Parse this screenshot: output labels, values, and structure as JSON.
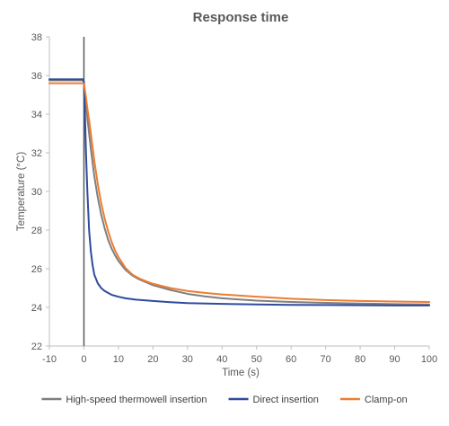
{
  "chart_data": {
    "type": "line",
    "title": "Response time",
    "xlabel": "Time (s)",
    "ylabel": "Temperature (°C)",
    "xlim": [
      -10,
      100
    ],
    "ylim": [
      22,
      38
    ],
    "xticks": [
      -10,
      0,
      10,
      20,
      30,
      40,
      50,
      60,
      70,
      80,
      90,
      100
    ],
    "yticks": [
      22,
      24,
      26,
      28,
      30,
      32,
      34,
      36,
      38
    ],
    "grid": false,
    "legend_position": "bottom",
    "annotations": [
      {
        "type": "vertical-line",
        "x": 0,
        "color": "#595959"
      }
    ],
    "series": [
      {
        "name": "High-speed thermowell insertion",
        "color": "#7f7f7f",
        "points": [
          [
            -10,
            35.75
          ],
          [
            -5,
            35.75
          ],
          [
            -1,
            35.75
          ],
          [
            -0.2,
            35.75
          ],
          [
            0,
            35.7
          ],
          [
            0.5,
            34.7
          ],
          [
            1,
            33.8
          ],
          [
            1.5,
            33.0
          ],
          [
            2,
            32.2
          ],
          [
            3,
            30.8
          ],
          [
            4,
            29.7
          ],
          [
            5,
            28.8
          ],
          [
            6,
            28.1
          ],
          [
            7,
            27.5
          ],
          [
            8,
            27.05
          ],
          [
            9,
            26.7
          ],
          [
            10,
            26.4
          ],
          [
            12,
            25.95
          ],
          [
            14,
            25.65
          ],
          [
            16,
            25.45
          ],
          [
            18,
            25.3
          ],
          [
            20,
            25.15
          ],
          [
            25,
            24.9
          ],
          [
            30,
            24.7
          ],
          [
            35,
            24.57
          ],
          [
            40,
            24.47
          ],
          [
            50,
            24.35
          ],
          [
            60,
            24.28
          ],
          [
            70,
            24.23
          ],
          [
            80,
            24.2
          ],
          [
            90,
            24.17
          ],
          [
            100,
            24.15
          ]
        ]
      },
      {
        "name": "Direct insertion",
        "color": "#2f4b9c",
        "points": [
          [
            -10,
            35.8
          ],
          [
            -5,
            35.8
          ],
          [
            -1,
            35.8
          ],
          [
            -0.2,
            35.8
          ],
          [
            0,
            35.6
          ],
          [
            0.3,
            34.0
          ],
          [
            0.6,
            32.0
          ],
          [
            1,
            30.0
          ],
          [
            1.5,
            28.0
          ],
          [
            2,
            26.9
          ],
          [
            2.5,
            26.2
          ],
          [
            3,
            25.7
          ],
          [
            4,
            25.25
          ],
          [
            5,
            25.0
          ],
          [
            6,
            24.85
          ],
          [
            8,
            24.65
          ],
          [
            10,
            24.55
          ],
          [
            12,
            24.47
          ],
          [
            15,
            24.4
          ],
          [
            20,
            24.33
          ],
          [
            25,
            24.27
          ],
          [
            30,
            24.22
          ],
          [
            40,
            24.18
          ],
          [
            50,
            24.15
          ],
          [
            60,
            24.13
          ],
          [
            70,
            24.12
          ],
          [
            80,
            24.11
          ],
          [
            90,
            24.1
          ],
          [
            100,
            24.1
          ]
        ]
      },
      {
        "name": "Clamp-on",
        "color": "#ed7d31",
        "points": [
          [
            -10,
            35.6
          ],
          [
            -5,
            35.6
          ],
          [
            -1,
            35.6
          ],
          [
            -0.2,
            35.6
          ],
          [
            0,
            35.55
          ],
          [
            0.5,
            35.0
          ],
          [
            1,
            34.3
          ],
          [
            1.5,
            33.7
          ],
          [
            2,
            33.0
          ],
          [
            3,
            31.6
          ],
          [
            4,
            30.4
          ],
          [
            5,
            29.4
          ],
          [
            6,
            28.6
          ],
          [
            7,
            27.95
          ],
          [
            8,
            27.4
          ],
          [
            9,
            26.95
          ],
          [
            10,
            26.6
          ],
          [
            12,
            26.05
          ],
          [
            14,
            25.7
          ],
          [
            16,
            25.5
          ],
          [
            18,
            25.35
          ],
          [
            20,
            25.22
          ],
          [
            25,
            25.0
          ],
          [
            30,
            24.85
          ],
          [
            35,
            24.75
          ],
          [
            40,
            24.67
          ],
          [
            50,
            24.55
          ],
          [
            60,
            24.45
          ],
          [
            70,
            24.38
          ],
          [
            80,
            24.33
          ],
          [
            90,
            24.3
          ],
          [
            100,
            24.28
          ]
        ]
      }
    ]
  }
}
